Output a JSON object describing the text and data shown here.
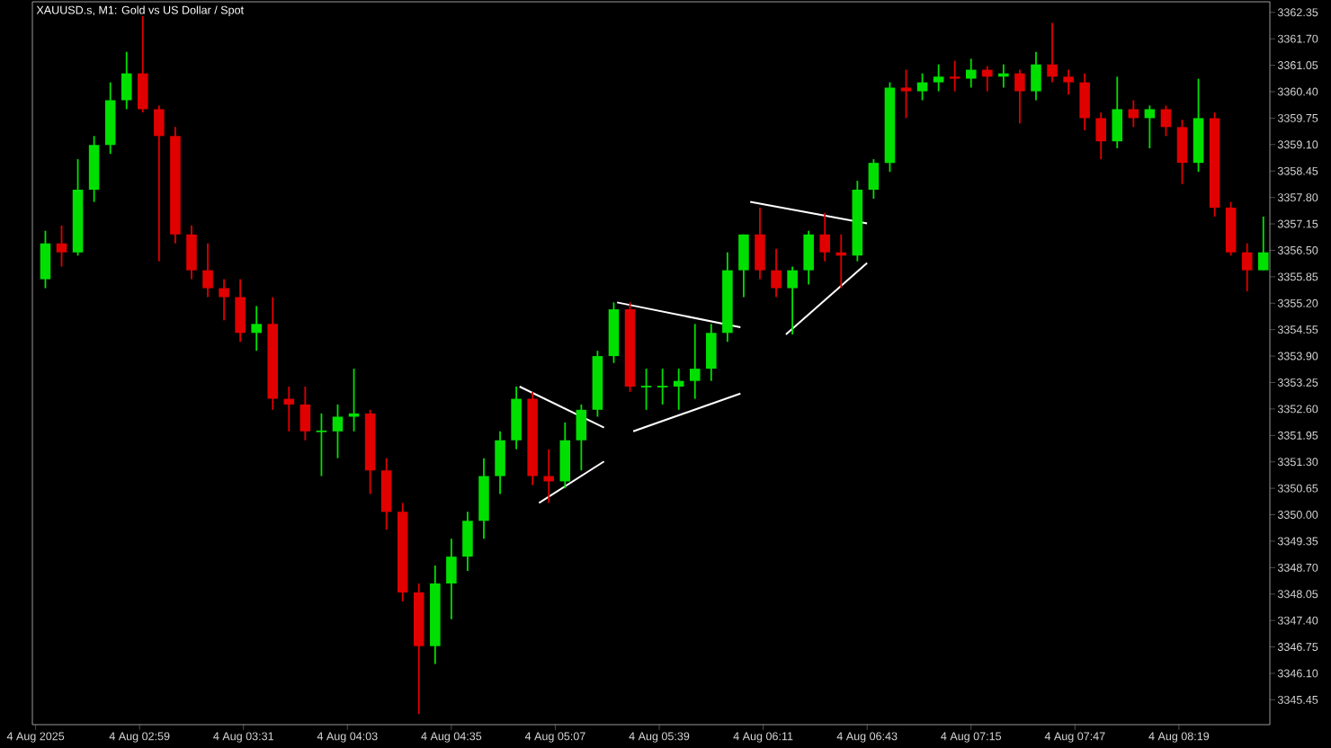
{
  "chart_data": {
    "type": "candlestick",
    "title": "XAUUSD.s, M1: Gold vs US Dollar / Spot",
    "x": [
      "2025-08-04T02:30",
      "2025-08-04T02:35",
      "2025-08-04T02:40",
      "2025-08-04T02:45",
      "2025-08-04T02:50",
      "2025-08-04T02:55",
      "2025-08-04T03:00",
      "2025-08-04T03:05",
      "2025-08-04T03:10",
      "2025-08-04T03:15",
      "2025-08-04T03:20",
      "2025-08-04T03:25",
      "2025-08-04T03:30",
      "2025-08-04T03:35",
      "2025-08-04T03:40",
      "2025-08-04T03:45",
      "2025-08-04T03:50",
      "2025-08-04T03:55",
      "2025-08-04T04:00",
      "2025-08-04T04:05",
      "2025-08-04T04:10",
      "2025-08-04T04:15",
      "2025-08-04T04:20",
      "2025-08-04T04:25",
      "2025-08-04T04:30",
      "2025-08-04T04:35",
      "2025-08-04T04:40",
      "2025-08-04T04:45",
      "2025-08-04T04:50",
      "2025-08-04T04:55",
      "2025-08-04T05:00",
      "2025-08-04T05:05",
      "2025-08-04T05:10",
      "2025-08-04T05:15",
      "2025-08-04T05:20",
      "2025-08-04T05:25",
      "2025-08-04T05:30",
      "2025-08-04T05:35",
      "2025-08-04T05:40",
      "2025-08-04T05:45",
      "2025-08-04T05:50",
      "2025-08-04T05:55",
      "2025-08-04T06:00",
      "2025-08-04T06:05",
      "2025-08-04T06:10",
      "2025-08-04T06:15",
      "2025-08-04T06:20",
      "2025-08-04T06:25",
      "2025-08-04T06:30",
      "2025-08-04T06:35",
      "2025-08-04T06:40",
      "2025-08-04T06:45",
      "2025-08-04T06:50",
      "2025-08-04T06:55",
      "2025-08-04T07:00",
      "2025-08-04T07:05",
      "2025-08-04T07:10",
      "2025-08-04T07:15",
      "2025-08-04T07:20",
      "2025-08-04T07:25",
      "2025-08-04T07:30",
      "2025-08-04T07:35",
      "2025-08-04T07:40",
      "2025-08-04T07:45",
      "2025-08-04T07:50",
      "2025-08-04T07:55",
      "2025-08-04T08:00",
      "2025-08-04T08:05",
      "2025-08-04T08:10",
      "2025-08-04T08:15",
      "2025-08-04T08:20",
      "2025-08-04T08:25",
      "2025-08-04T08:30",
      "2025-08-04T08:35",
      "2025-08-04T08:40",
      "2025-08-04T08:45"
    ],
    "ohlc": [
      [
        3355.79,
        3356.98,
        3355.57,
        3356.67
      ],
      [
        3356.67,
        3357.11,
        3356.1,
        3356.45
      ],
      [
        3356.45,
        3358.74,
        3356.37,
        3357.99
      ],
      [
        3357.99,
        3359.31,
        3357.69,
        3359.09
      ],
      [
        3359.09,
        3360.63,
        3358.87,
        3360.19
      ],
      [
        3360.19,
        3361.38,
        3359.97,
        3360.85
      ],
      [
        3360.85,
        3362.26,
        3359.89,
        3359.97
      ],
      [
        3359.97,
        3360.06,
        3356.23,
        3359.31
      ],
      [
        3359.31,
        3359.53,
        3356.67,
        3356.89
      ],
      [
        3356.89,
        3357.11,
        3355.79,
        3356.01
      ],
      [
        3356.01,
        3356.67,
        3355.35,
        3355.57
      ],
      [
        3355.57,
        3355.79,
        3354.78,
        3355.35
      ],
      [
        3355.35,
        3355.79,
        3354.25,
        3354.47
      ],
      [
        3354.47,
        3355.13,
        3354.03,
        3354.69
      ],
      [
        3354.69,
        3355.35,
        3352.58,
        3352.85
      ],
      [
        3352.85,
        3353.15,
        3352.05,
        3352.71
      ],
      [
        3352.71,
        3353.15,
        3351.83,
        3352.05
      ],
      [
        3352.05,
        3352.49,
        3350.95,
        3352.05
      ],
      [
        3352.05,
        3352.71,
        3351.39,
        3352.41
      ],
      [
        3352.41,
        3353.59,
        3352.05,
        3352.49
      ],
      [
        3352.49,
        3352.58,
        3350.51,
        3351.09
      ],
      [
        3351.09,
        3351.39,
        3349.63,
        3350.07
      ],
      [
        3350.07,
        3350.29,
        3347.87,
        3348.09
      ],
      [
        3348.09,
        3348.31,
        3345.1,
        3346.77
      ],
      [
        3346.77,
        3348.75,
        3346.33,
        3348.31
      ],
      [
        3348.31,
        3349.41,
        3347.43,
        3348.97
      ],
      [
        3348.97,
        3350.07,
        3348.62,
        3349.85
      ],
      [
        3349.85,
        3351.39,
        3349.41,
        3350.95
      ],
      [
        3350.95,
        3352.05,
        3350.51,
        3351.83
      ],
      [
        3351.83,
        3353.15,
        3351.61,
        3352.85
      ],
      [
        3352.85,
        3353.02,
        3350.73,
        3350.95
      ],
      [
        3350.95,
        3351.61,
        3350.29,
        3350.82
      ],
      [
        3350.82,
        3352.27,
        3350.65,
        3351.83
      ],
      [
        3351.83,
        3352.71,
        3351.09,
        3352.58
      ],
      [
        3352.58,
        3354.03,
        3352.41,
        3353.9
      ],
      [
        3353.9,
        3355.22,
        3353.73,
        3355.05
      ],
      [
        3355.05,
        3355.22,
        3353.02,
        3353.15
      ],
      [
        3353.15,
        3353.59,
        3352.58,
        3353.15
      ],
      [
        3353.15,
        3353.59,
        3352.71,
        3353.15
      ],
      [
        3353.15,
        3353.59,
        3352.58,
        3353.29
      ],
      [
        3353.29,
        3354.69,
        3352.85,
        3353.59
      ],
      [
        3353.59,
        3354.69,
        3353.29,
        3354.47
      ],
      [
        3354.47,
        3356.45,
        3354.25,
        3356.01
      ],
      [
        3356.01,
        3356.89,
        3355.35,
        3356.89
      ],
      [
        3356.89,
        3357.55,
        3355.79,
        3356.01
      ],
      [
        3356.01,
        3356.54,
        3355.35,
        3355.57
      ],
      [
        3355.57,
        3356.1,
        3354.43,
        3356.01
      ],
      [
        3356.01,
        3356.98,
        3355.66,
        3356.89
      ],
      [
        3356.89,
        3357.42,
        3356.23,
        3356.45
      ],
      [
        3356.45,
        3356.89,
        3355.57,
        3356.37
      ],
      [
        3356.37,
        3358.21,
        3356.23,
        3357.99
      ],
      [
        3357.99,
        3358.74,
        3357.77,
        3358.65
      ],
      [
        3358.65,
        3360.63,
        3358.43,
        3360.5
      ],
      [
        3360.5,
        3360.94,
        3359.75,
        3360.41
      ],
      [
        3360.41,
        3360.85,
        3360.19,
        3360.63
      ],
      [
        3360.63,
        3361.07,
        3360.41,
        3360.77
      ],
      [
        3360.77,
        3361.16,
        3360.41,
        3360.72
      ],
      [
        3360.72,
        3361.21,
        3360.5,
        3360.94
      ],
      [
        3360.94,
        3361.03,
        3360.41,
        3360.77
      ],
      [
        3360.77,
        3361.07,
        3360.5,
        3360.85
      ],
      [
        3360.85,
        3360.94,
        3359.62,
        3360.41
      ],
      [
        3360.41,
        3361.38,
        3360.19,
        3361.07
      ],
      [
        3361.07,
        3362.09,
        3360.63,
        3360.77
      ],
      [
        3360.77,
        3360.94,
        3360.33,
        3360.63
      ],
      [
        3360.63,
        3360.85,
        3359.45,
        3359.75
      ],
      [
        3359.75,
        3359.89,
        3358.74,
        3359.18
      ],
      [
        3359.18,
        3360.77,
        3359.01,
        3359.97
      ],
      [
        3359.97,
        3360.19,
        3359.53,
        3359.75
      ],
      [
        3359.75,
        3360.06,
        3359.01,
        3359.97
      ],
      [
        3359.97,
        3360.06,
        3359.31,
        3359.53
      ],
      [
        3359.53,
        3359.71,
        3358.13,
        3358.65
      ],
      [
        3358.65,
        3360.72,
        3358.43,
        3359.75
      ],
      [
        3359.75,
        3359.89,
        3357.33,
        3357.55
      ],
      [
        3357.55,
        3357.69,
        3356.37,
        3356.45
      ],
      [
        3356.45,
        3356.67,
        3355.49,
        3356.01
      ],
      [
        3356.01,
        3357.33,
        3356.01,
        3356.45
      ]
    ],
    "colors": [
      "#00e000",
      "#e00000",
      "#00e000",
      "#00e000",
      "#00e000",
      "#00e000",
      "#e00000",
      "#e00000",
      "#e00000",
      "#e00000",
      "#e00000",
      "#e00000",
      "#e00000",
      "#00e000",
      "#e00000",
      "#e00000",
      "#e00000",
      "#00e000",
      "#00e000",
      "#00e000",
      "#e00000",
      "#e00000",
      "#e00000",
      "#e00000",
      "#00e000",
      "#00e000",
      "#00e000",
      "#00e000",
      "#00e000",
      "#00e000",
      "#e00000",
      "#e00000",
      "#00e000",
      "#00e000",
      "#00e000",
      "#00e000",
      "#e00000",
      "#00e000",
      "#00e000",
      "#00e000",
      "#00e000",
      "#00e000",
      "#00e000",
      "#00e000",
      "#e00000",
      "#e00000",
      "#00e000",
      "#00e000",
      "#e00000",
      "#e00000",
      "#00e000",
      "#00e000",
      "#00e000",
      "#e00000",
      "#00e000",
      "#00e000",
      "#e00000",
      "#00e000",
      "#e00000",
      "#00e000",
      "#e00000",
      "#00e000",
      "#e00000",
      "#e00000",
      "#e00000",
      "#e00000",
      "#00e000",
      "#e00000",
      "#00e000",
      "#e00000",
      "#e00000",
      "#00e000",
      "#e00000",
      "#e00000",
      "#e00000",
      "#00e000"
    ],
    "series": [
      {
        "type": "line",
        "color": "#ffffff",
        "x": [
          "2025-08-04T04:56",
          "2025-08-04T05:22"
        ],
        "values": [
          3353.15,
          3352.14
        ]
      },
      {
        "type": "line",
        "color": "#ffffff",
        "x": [
          "2025-08-04T05:02",
          "2025-08-04T05:22"
        ],
        "values": [
          3350.29,
          3351.31
        ]
      },
      {
        "type": "line",
        "color": "#ffffff",
        "x": [
          "2025-08-04T05:26",
          "2025-08-04T06:04"
        ],
        "values": [
          3355.22,
          3354.61
        ]
      },
      {
        "type": "line",
        "color": "#ffffff",
        "x": [
          "2025-08-04T05:31",
          "2025-08-04T06:04"
        ],
        "values": [
          3352.05,
          3352.98
        ]
      },
      {
        "type": "line",
        "color": "#ffffff",
        "x": [
          "2025-08-04T06:07",
          "2025-08-04T06:43"
        ],
        "values": [
          3357.69,
          3357.16
        ]
      },
      {
        "type": "line",
        "color": "#ffffff",
        "x": [
          "2025-08-04T06:18",
          "2025-08-04T06:43"
        ],
        "values": [
          3354.43,
          3356.19
        ]
      }
    ],
    "xlim": [
      "2025-08-04T02:26",
      "2025-08-04T08:47"
    ],
    "xticks": [
      {
        "value": "2025-08-04T02:27",
        "label": "4 Aug 2025"
      },
      {
        "value": "2025-08-04T02:59",
        "label": "4 Aug 02:59"
      },
      {
        "value": "2025-08-04T03:31",
        "label": "4 Aug 03:31"
      },
      {
        "value": "2025-08-04T04:03",
        "label": "4 Aug 04:03"
      },
      {
        "value": "2025-08-04T04:35",
        "label": "4 Aug 04:35"
      },
      {
        "value": "2025-08-04T05:07",
        "label": "4 Aug 05:07"
      },
      {
        "value": "2025-08-04T05:39",
        "label": "4 Aug 05:39"
      },
      {
        "value": "2025-08-04T06:11",
        "label": "4 Aug 06:11"
      },
      {
        "value": "2025-08-04T06:43",
        "label": "4 Aug 06:43"
      },
      {
        "value": "2025-08-04T07:15",
        "label": "4 Aug 07:15"
      },
      {
        "value": "2025-08-04T07:47",
        "label": "4 Aug 07:47"
      },
      {
        "value": "2025-08-04T08:19",
        "label": "4 Aug 08:19"
      }
    ],
    "ylim": [
      3344.84,
      3362.61
    ],
    "yticks": [
      3345.45,
      {
        "value": 3346.1,
        "label": "3346.10"
      },
      3346.75,
      {
        "value": 3347.4,
        "label": "3347.40"
      },
      3348.05,
      {
        "value": 3348.7,
        "label": "3348.70"
      },
      3349.35,
      {
        "value": 3350.0,
        "label": "3350.00"
      },
      3350.65,
      {
        "value": 3351.3,
        "label": "3351.30"
      },
      3351.95,
      {
        "value": 3352.6,
        "label": "3352.60"
      },
      3353.25,
      {
        "value": 3353.9,
        "label": "3353.90"
      },
      3354.55,
      {
        "value": 3355.2,
        "label": "3355.20"
      },
      3355.85,
      {
        "value": 3356.5,
        "label": "3356.50"
      },
      3357.15,
      {
        "value": 3357.8,
        "label": "3357.80"
      },
      3358.45,
      {
        "value": 3359.1,
        "label": "3359.10"
      },
      3359.75,
      {
        "value": 3360.4,
        "label": "3360.40"
      },
      3361.05,
      {
        "value": 3361.7,
        "label": "3361.70"
      },
      3362.35
    ]
  }
}
